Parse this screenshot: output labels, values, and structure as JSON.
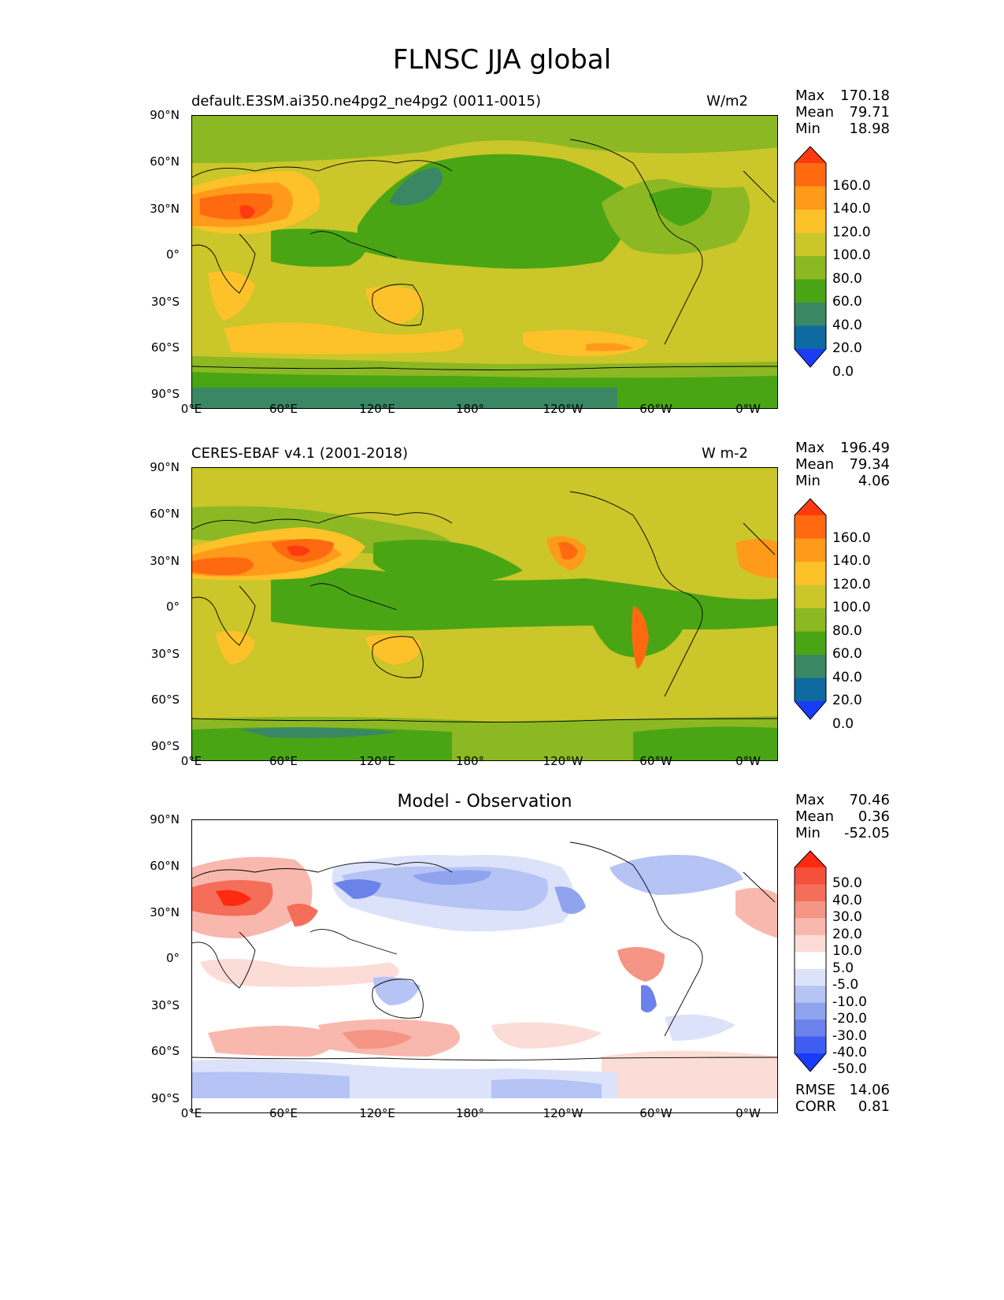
{
  "title": "FLNSC JJA global",
  "lat_ticks": [
    "90°N",
    "60°N",
    "30°N",
    "0°",
    "30°S",
    "60°S",
    "90°S"
  ],
  "lon_ticks": [
    "0°E",
    "60°E",
    "120°E",
    "180°",
    "120°W",
    "60°W",
    "0°W"
  ],
  "panels": [
    {
      "left_title": "default.E3SM.ai350.ne4pg2_ne4pg2 (0011-0015)",
      "right_title": "W/m2",
      "center_title": "",
      "stats": [
        {
          "label": "Max",
          "value": "170.18"
        },
        {
          "label": "Mean",
          "value": "79.71"
        },
        {
          "label": "Min",
          "value": "18.98"
        }
      ],
      "colorbar_labels": [
        "160.0",
        "140.0",
        "120.0",
        "100.0",
        "80.0",
        "60.0",
        "40.0",
        "20.0",
        "0.0"
      ],
      "colorbar_colors": [
        "#ff3a10",
        "#ff6a10",
        "#ff9a1a",
        "#fdc12a",
        "#cbc62a",
        "#8cb823",
        "#4aa515",
        "#3a8763",
        "#0e6aa0",
        "#1a3cf6"
      ]
    },
    {
      "left_title": "CERES-EBAF v4.1 (2001-2018)",
      "right_title": "W m-2",
      "center_title": "",
      "stats": [
        {
          "label": "Max",
          "value": "196.49"
        },
        {
          "label": "Mean",
          "value": "79.34"
        },
        {
          "label": "Min",
          "value": "4.06"
        }
      ],
      "colorbar_labels": [
        "160.0",
        "140.0",
        "120.0",
        "100.0",
        "80.0",
        "60.0",
        "40.0",
        "20.0",
        "0.0"
      ],
      "colorbar_colors": [
        "#ff3a10",
        "#ff6a10",
        "#ff9a1a",
        "#fdc12a",
        "#cbc62a",
        "#8cb823",
        "#4aa515",
        "#3a8763",
        "#0e6aa0",
        "#1a3cf6"
      ]
    },
    {
      "left_title": "",
      "right_title": "",
      "center_title": "Model - Observation",
      "stats": [
        {
          "label": "Max",
          "value": "70.46"
        },
        {
          "label": "Mean",
          "value": "0.36"
        },
        {
          "label": "Min",
          "value": "-52.05"
        }
      ],
      "bottom_stats": [
        {
          "label": "RMSE",
          "value": "14.06"
        },
        {
          "label": "CORR",
          "value": "0.81"
        }
      ],
      "colorbar_labels": [
        "50.0",
        "40.0",
        "30.0",
        "20.0",
        "10.0",
        "5.0",
        "-5.0",
        "-10.0",
        "-20.0",
        "-30.0",
        "-40.0",
        "-50.0"
      ],
      "colorbar_colors": [
        "#ff2a10",
        "#f5503a",
        "#f46e5a",
        "#f59585",
        "#f8b8ad",
        "#fcdcd6",
        "#ffffff",
        "#dce2fa",
        "#b5c3f5",
        "#8fa3ef",
        "#6a82ea",
        "#3f5df0",
        "#1a3cf6"
      ]
    }
  ],
  "colors": {
    "map_background_1": "#cbc62a",
    "map_background_2": "#cbc62a",
    "map_background_3": "#ffffff",
    "coastline": "#000000"
  }
}
